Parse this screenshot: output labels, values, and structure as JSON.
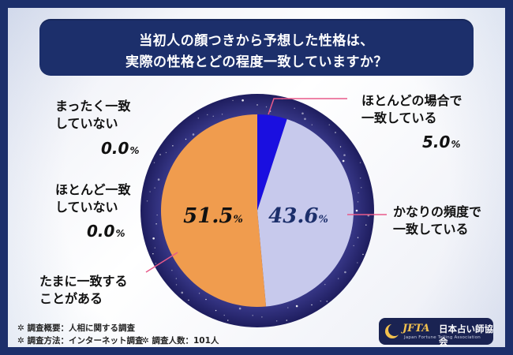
{
  "header": {
    "line1": "当初人の顔つきから予想した性格は、",
    "line2": "実際の性格とどの程度一致していますか？"
  },
  "chart_data": {
    "type": "pie",
    "title": "当初人の顔つきから予想した性格は、実際の性格とどの程度一致していますか？",
    "slices": [
      {
        "label_line1": "ほとんどの場合で",
        "label_line2": "一致している",
        "value": 5.0,
        "display": "5.0",
        "color": "#1a0fe0"
      },
      {
        "label_line1": "かなりの頻度で",
        "label_line2": "一致している",
        "value": 43.6,
        "display": "43.6",
        "color": "#c7c9ec"
      },
      {
        "label_line1": "たまに一致する",
        "label_line2": "ことがある",
        "value": 51.5,
        "display": "51.5",
        "color": "#f09c4e"
      },
      {
        "label_line1": "ほとんど一致",
        "label_line2": "していない",
        "value": 0.0,
        "display": "0.0",
        "color": "#f09c4e"
      },
      {
        "label_line1": "まったく一致",
        "label_line2": "していない",
        "value": 0.0,
        "display": "0.0",
        "color": "#f09c4e"
      }
    ],
    "unit": "%",
    "ring_color": "#2b2a73",
    "leader_color": "#e85a8a"
  },
  "footnotes": {
    "summary": "調査概要：人相に関する調査",
    "method": "調査方法：インターネット調査",
    "count": "調査人数：101人",
    "star": "✲"
  },
  "logo": {
    "brand": "JFTA",
    "org": "日本占い師協会",
    "sub": "Japan Fortune Telling Association"
  }
}
